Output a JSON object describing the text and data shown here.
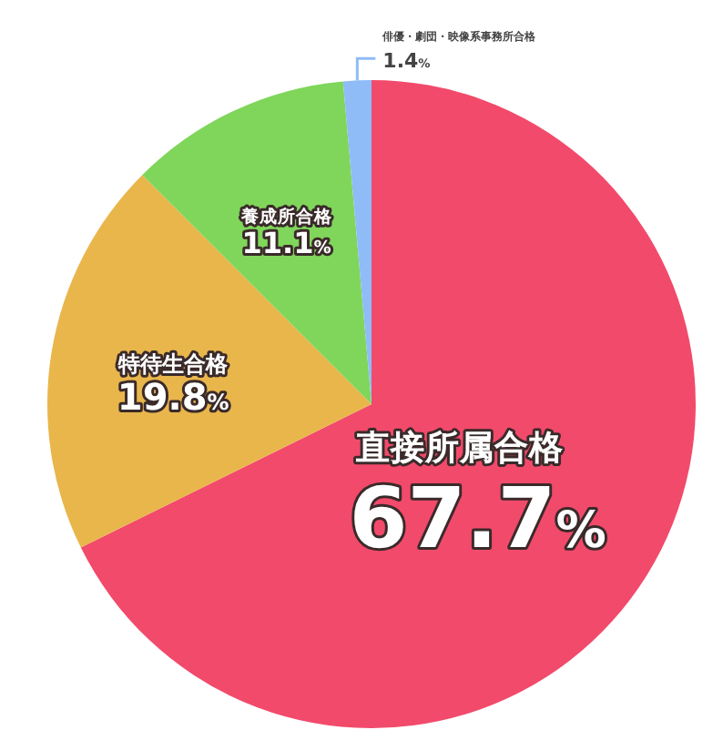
{
  "chart_data": {
    "type": "pie",
    "categories": [
      "直接所属合格",
      "特待生合格",
      "養成所合格",
      "俳優・劇団・映像系事務所合格"
    ],
    "values": [
      67.7,
      19.8,
      11.1,
      1.4
    ],
    "value_labels": [
      "67.7%",
      "19.8%",
      "11.1%",
      "1.4%"
    ],
    "colors": [
      "#f24a6b",
      "#e9b64c",
      "#7fd65a",
      "#8fbcf7"
    ]
  }
}
